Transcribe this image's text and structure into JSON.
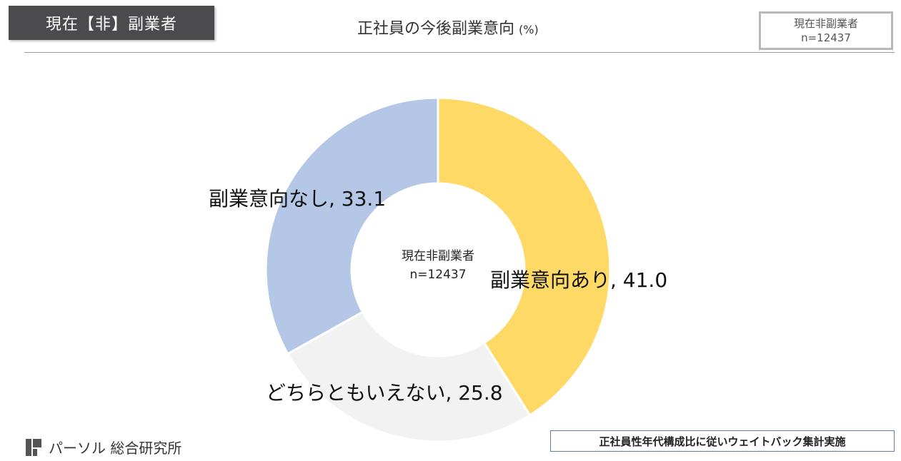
{
  "header": {
    "badge_label": "現在【非】副業者",
    "title": "正社員の今後副業意向",
    "title_unit": "(%)",
    "sample_box": {
      "line1": "現在非副業者",
      "line2": "n=12437"
    }
  },
  "chart_data": {
    "type": "pie",
    "title": "正社員の今後副業意向",
    "unit": "(%)",
    "center_label": {
      "line1": "現在非副業者",
      "line2": "n=12437"
    },
    "slices": [
      {
        "label": "副業意向あり",
        "value": 41.0,
        "color": "#FFD966"
      },
      {
        "label": "どちらともいえない",
        "value": 25.8,
        "color": "#F2F2F2"
      },
      {
        "label": "副業意向なし",
        "value": 33.1,
        "color": "#B4C7E7"
      }
    ]
  },
  "footer": {
    "company": "パーソル 総合研究所",
    "note": "正社員性年代構成比に従いウェイトバック集計実施"
  },
  "colors": {
    "badge_bg": "#4b4b4d",
    "note_border": "#5a7fb0"
  }
}
